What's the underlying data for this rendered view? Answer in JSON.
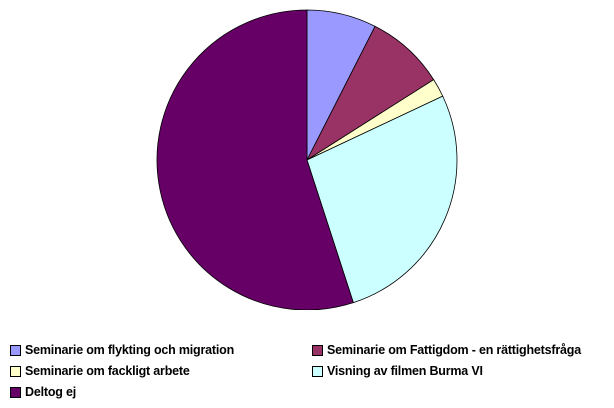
{
  "chart_data": {
    "type": "pie",
    "start_angle": "12 o'clock, clockwise",
    "slices": [
      {
        "label": "Seminarie om flykting och migration",
        "value": 7.5,
        "color": "#9999ff"
      },
      {
        "label": "Seminarie om Fattigdom - en rättighetsfråga",
        "value": 8.5,
        "color": "#993366"
      },
      {
        "label": "Seminarie om fackligt arbete",
        "value": 2.0,
        "color": "#ffffcc"
      },
      {
        "label": "Visning av filmen Burma VI",
        "value": 27.0,
        "color": "#ccffff"
      },
      {
        "label": "Deltog ej",
        "value": 55.0,
        "color": "#660066"
      }
    ],
    "legend": {
      "placement": "bottom",
      "entries": [
        "Seminarie om flykting och migration",
        "Seminarie om Fattigdom - en rättighetsfråga",
        "Seminarie om fackligt arbete",
        "Visning av filmen Burma VI",
        "Deltog ej"
      ]
    }
  }
}
